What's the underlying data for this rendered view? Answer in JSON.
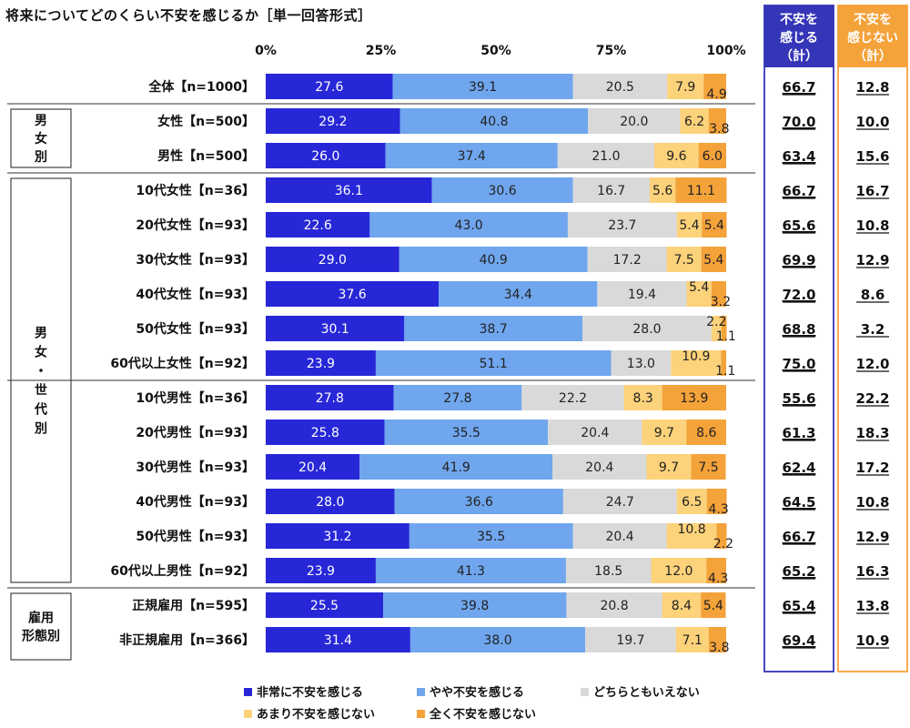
{
  "title": "将来についてどのくらい不安を感じるか［単一回答形式］",
  "colors": {
    "非常に不安を感じる": "#2727d8",
    "やや不安を感じる": "#6fa6ee",
    "どちらともいえない": "#d9d9d9",
    "あまり不安を感じない": "#fcd27a",
    "全く不安を感じない": "#f4a23a",
    "box_blue": "#3535b8",
    "box_orange": "#f4a23a",
    "group_line": "#777777"
  },
  "summary_headers": {
    "feel": [
      "不安を",
      "感じる",
      "（計）"
    ],
    "not_feel": [
      "不安を",
      "感じない",
      "（計）"
    ]
  },
  "group_labels": [
    {
      "id": "gender",
      "lines": [
        "男",
        "女",
        "別"
      ],
      "rows": [
        1,
        2
      ]
    },
    {
      "id": "gender-age",
      "lines": [
        "男",
        "女",
        "・",
        "世",
        "代",
        "別"
      ],
      "rows": [
        3,
        14
      ]
    },
    {
      "id": "employment",
      "lines": [
        "雇用",
        "形態別"
      ],
      "rows": [
        15,
        16
      ]
    }
  ],
  "chart_data": {
    "type": "bar",
    "orientation": "horizontal",
    "stacked": "100%",
    "xlim": [
      0,
      100
    ],
    "x_ticks": [
      "0%",
      "25%",
      "50%",
      "75%",
      "100%"
    ],
    "series_names": [
      "非常に不安を感じる",
      "やや不安を感じる",
      "どちらともいえない",
      "あまり不安を感じない",
      "全く不安を感じない"
    ],
    "rows": [
      {
        "label": "全体【n=1000】",
        "values": [
          27.6,
          39.1,
          20.5,
          7.9,
          4.9
        ],
        "feel": "66.7",
        "not_feel": "12.8"
      },
      {
        "label": "女性【n=500】",
        "values": [
          29.2,
          40.8,
          20.0,
          6.2,
          3.8
        ],
        "feel": "70.0",
        "not_feel": "10.0"
      },
      {
        "label": "男性【n=500】",
        "values": [
          26.0,
          37.4,
          21.0,
          9.6,
          6.0
        ],
        "feel": "63.4",
        "not_feel": "15.6"
      },
      {
        "label": "10代女性【n=36】",
        "values": [
          36.1,
          30.6,
          16.7,
          5.6,
          11.1
        ],
        "feel": "66.7",
        "not_feel": "16.7"
      },
      {
        "label": "20代女性【n=93】",
        "values": [
          22.6,
          43.0,
          23.7,
          5.4,
          5.4
        ],
        "feel": "65.6",
        "not_feel": "10.8"
      },
      {
        "label": "30代女性【n=93】",
        "values": [
          29.0,
          40.9,
          17.2,
          7.5,
          5.4
        ],
        "feel": "69.9",
        "not_feel": "12.9"
      },
      {
        "label": "40代女性【n=93】",
        "values": [
          37.6,
          34.4,
          19.4,
          5.4,
          3.2
        ],
        "feel": "72.0",
        "not_feel": "8.6"
      },
      {
        "label": "50代女性【n=93】",
        "values": [
          30.1,
          38.7,
          28.0,
          2.2,
          1.1
        ],
        "feel": "68.8",
        "not_feel": "3.2"
      },
      {
        "label": "60代以上女性【n=92】",
        "values": [
          23.9,
          51.1,
          13.0,
          10.9,
          1.1
        ],
        "feel": "75.0",
        "not_feel": "12.0"
      },
      {
        "label": "10代男性【n=36】",
        "values": [
          27.8,
          27.8,
          22.2,
          8.3,
          13.9
        ],
        "feel": "55.6",
        "not_feel": "22.2"
      },
      {
        "label": "20代男性【n=93】",
        "values": [
          25.8,
          35.5,
          20.4,
          9.7,
          8.6
        ],
        "feel": "61.3",
        "not_feel": "18.3"
      },
      {
        "label": "30代男性【n=93】",
        "values": [
          20.4,
          41.9,
          20.4,
          9.7,
          7.5
        ],
        "feel": "62.4",
        "not_feel": "17.2"
      },
      {
        "label": "40代男性【n=93】",
        "values": [
          28.0,
          36.6,
          24.7,
          6.5,
          4.3
        ],
        "feel": "64.5",
        "not_feel": "10.8"
      },
      {
        "label": "50代男性【n=93】",
        "values": [
          31.2,
          35.5,
          20.4,
          10.8,
          2.2
        ],
        "feel": "66.7",
        "not_feel": "12.9"
      },
      {
        "label": "60代以上男性【n=92】",
        "values": [
          23.9,
          41.3,
          18.5,
          12.0,
          4.3
        ],
        "feel": "65.2",
        "not_feel": "16.3"
      },
      {
        "label": "正規雇用【n=595】",
        "values": [
          25.5,
          39.8,
          20.8,
          8.4,
          5.4
        ],
        "feel": "65.4",
        "not_feel": "13.8"
      },
      {
        "label": "非正規雇用【n=366】",
        "values": [
          31.4,
          38.0,
          19.7,
          7.1,
          3.8
        ],
        "feel": "69.4",
        "not_feel": "10.9"
      }
    ]
  }
}
